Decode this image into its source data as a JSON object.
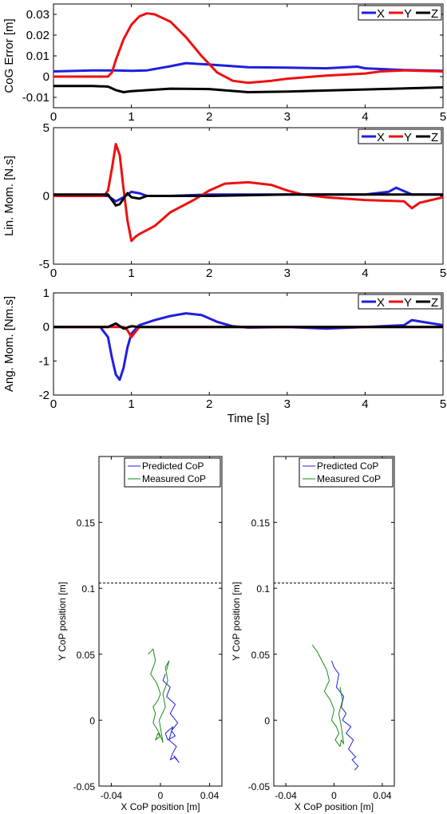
{
  "chart_data": [
    {
      "type": "line",
      "ylabel": "CoG Error [m]",
      "xlabel": "",
      "xlim": [
        0,
        5
      ],
      "ylim": [
        -0.015,
        0.035
      ],
      "xticks": [
        "0",
        "1",
        "2",
        "3",
        "4",
        "5"
      ],
      "yticks": [
        "-0.01",
        "0",
        "0.01",
        "0.02",
        "0.03"
      ],
      "ytick_values": [
        -0.01,
        0,
        0.01,
        0.02,
        0.03
      ],
      "legend": [
        "X",
        "Y",
        "Z"
      ],
      "legend_position": "top-right",
      "colors": {
        "X": "#1f1fdd",
        "Y": "#ee1111",
        "Z": "#000000"
      },
      "series": [
        {
          "name": "X",
          "x": [
            0,
            0.5,
            0.8,
            1.0,
            1.2,
            1.5,
            1.7,
            2.0,
            2.5,
            3.0,
            3.5,
            3.9,
            4.0,
            4.5,
            5.0
          ],
          "y": [
            0.0025,
            0.003,
            0.003,
            0.0028,
            0.003,
            0.005,
            0.0065,
            0.0058,
            0.0045,
            0.0043,
            0.004,
            0.0048,
            0.004,
            0.0032,
            0.0028
          ]
        },
        {
          "name": "Y",
          "x": [
            0,
            0.5,
            0.7,
            0.75,
            0.8,
            0.9,
            1.0,
            1.1,
            1.2,
            1.3,
            1.5,
            1.7,
            1.9,
            2.1,
            2.3,
            2.5,
            2.8,
            3.0,
            3.5,
            4.0,
            4.2,
            4.5,
            5.0
          ],
          "y": [
            0.0,
            0.0,
            0.0,
            0.002,
            0.008,
            0.018,
            0.025,
            0.029,
            0.0305,
            0.03,
            0.0265,
            0.019,
            0.01,
            0.002,
            -0.002,
            -0.003,
            -0.002,
            -0.001,
            0.0005,
            0.0015,
            0.0025,
            0.003,
            0.0025
          ]
        },
        {
          "name": "Z",
          "x": [
            0,
            0.5,
            0.7,
            0.8,
            0.9,
            1.0,
            1.5,
            2.0,
            2.5,
            3.0,
            4.0,
            5.0
          ],
          "y": [
            -0.0045,
            -0.0045,
            -0.0048,
            -0.0065,
            -0.0075,
            -0.007,
            -0.0058,
            -0.006,
            -0.0075,
            -0.0072,
            -0.0062,
            -0.0052
          ]
        }
      ]
    },
    {
      "type": "line",
      "ylabel": "Lin. Mom. [N.s]",
      "xlabel": "",
      "xlim": [
        0,
        5
      ],
      "ylim": [
        -5,
        5
      ],
      "xticks": [
        "0",
        "1",
        "2",
        "3",
        "4",
        "5"
      ],
      "yticks": [
        "-5",
        "0",
        "5"
      ],
      "ytick_values": [
        -5,
        0,
        5
      ],
      "legend": [
        "X",
        "Y",
        "Z"
      ],
      "legend_position": "top-right",
      "colors": {
        "X": "#1f1fdd",
        "Y": "#ee1111",
        "Z": "#000000"
      },
      "series": [
        {
          "name": "X",
          "x": [
            0,
            0.7,
            0.8,
            0.9,
            1.0,
            1.1,
            1.2,
            1.5,
            2.0,
            3.0,
            4.0,
            4.3,
            4.4,
            4.6,
            5.0
          ],
          "y": [
            0,
            0,
            -0.4,
            -0.1,
            0.3,
            0.2,
            0,
            0,
            0.1,
            0.1,
            0.1,
            0.3,
            0.6,
            0.1,
            0.1
          ]
        },
        {
          "name": "Y",
          "x": [
            0,
            0.65,
            0.7,
            0.75,
            0.8,
            0.85,
            0.9,
            0.95,
            1.0,
            1.05,
            1.1,
            1.3,
            1.5,
            1.8,
            2.0,
            2.2,
            2.5,
            2.8,
            3.0,
            3.2,
            3.5,
            4.0,
            4.5,
            4.6,
            4.7,
            5.0
          ],
          "y": [
            0,
            0,
            0.4,
            2.0,
            3.8,
            3.0,
            0.5,
            -1.8,
            -3.3,
            -3.0,
            -2.8,
            -2.2,
            -1.2,
            -0.3,
            0.4,
            0.9,
            1.0,
            0.8,
            0.4,
            0.1,
            -0.1,
            -0.3,
            -0.4,
            -0.9,
            -0.5,
            -0.1
          ]
        },
        {
          "name": "Z",
          "x": [
            0,
            0.7,
            0.75,
            0.8,
            0.85,
            0.9,
            0.95,
            1.0,
            1.1,
            1.2,
            1.5,
            2.0,
            3.0,
            4.0,
            5.0
          ],
          "y": [
            0.1,
            0.1,
            -0.3,
            -0.7,
            -0.6,
            -0.2,
            0.2,
            -0.1,
            -0.2,
            0,
            0,
            0,
            0.1,
            0.1,
            0.1
          ]
        }
      ]
    },
    {
      "type": "line",
      "ylabel": "Ang. Mom. [Nm.s]",
      "xlabel": "Time [s]",
      "xlim": [
        0,
        5
      ],
      "ylim": [
        -2,
        1
      ],
      "xticks": [
        "0",
        "1",
        "2",
        "3",
        "4",
        "5"
      ],
      "yticks": [
        "-2",
        "-1",
        "0",
        "1"
      ],
      "ytick_values": [
        -2,
        -1,
        0,
        1
      ],
      "legend": [
        "X",
        "Y",
        "Z"
      ],
      "legend_position": "top-right",
      "colors": {
        "X": "#1f1fdd",
        "Y": "#ee1111",
        "Z": "#000000"
      },
      "series": [
        {
          "name": "X",
          "x": [
            0,
            0.6,
            0.7,
            0.75,
            0.8,
            0.85,
            0.9,
            0.95,
            1.0,
            1.1,
            1.3,
            1.5,
            1.7,
            1.9,
            2.1,
            2.3,
            2.5,
            3.0,
            3.5,
            4.0,
            4.5,
            4.6,
            5.0
          ],
          "y": [
            0,
            0,
            -0.3,
            -0.9,
            -1.4,
            -1.55,
            -1.2,
            -0.6,
            -0.2,
            0.05,
            0.2,
            0.32,
            0.4,
            0.35,
            0.15,
            0.02,
            -0.02,
            0,
            -0.05,
            0,
            0.05,
            0.2,
            0.05
          ]
        },
        {
          "name": "Y",
          "x": [
            0,
            0.9,
            0.95,
            1.0,
            1.05,
            1.1,
            1.5,
            2.0,
            3.0,
            4.0,
            5.0
          ],
          "y": [
            0,
            0,
            -0.1,
            -0.3,
            -0.15,
            0,
            0,
            0,
            0,
            0,
            0
          ]
        },
        {
          "name": "Z",
          "x": [
            0,
            0.7,
            0.8,
            0.9,
            1.0,
            1.1,
            2.0,
            3.0,
            4.0,
            5.0
          ],
          "y": [
            0,
            0,
            0.1,
            -0.05,
            0.02,
            0,
            0,
            0,
            0,
            0
          ]
        }
      ]
    },
    {
      "type": "line",
      "xlabel": "X CoP position [m]",
      "ylabel": "Y CoP position [m]",
      "xlim": [
        -0.05,
        0.05
      ],
      "ylim": [
        -0.05,
        0.2
      ],
      "xticks": [
        "-0.04",
        "0",
        "0.04"
      ],
      "xtick_values": [
        -0.04,
        0,
        0.04
      ],
      "yticks": [
        "-0.05",
        "0",
        "0.05",
        "0.1",
        "0.15"
      ],
      "ytick_values": [
        -0.05,
        0,
        0.05,
        0.1,
        0.15
      ],
      "legend": [
        "Predicted CoP",
        "Measured CoP"
      ],
      "legend_position": "top-right",
      "colors": {
        "Predicted CoP": "#1f1fdd",
        "Measured CoP": "#1a8a1a"
      },
      "threshold": 0.104,
      "series": [
        {
          "name": "Predicted CoP",
          "x": [
            0.004,
            0.002,
            0.008,
            0.005,
            0.012,
            0.008,
            0.014,
            0.009,
            0.012,
            0.006,
            0.004,
            0.01,
            0.007,
            0.013,
            0.01,
            0.008,
            0.012,
            0.015,
            0.011,
            0.013
          ],
          "y": [
            0.035,
            0.03,
            0.025,
            0.018,
            0.012,
            0.005,
            -0.002,
            -0.008,
            -0.012,
            -0.015,
            -0.01,
            -0.005,
            -0.015,
            -0.02,
            -0.025,
            -0.03,
            -0.028,
            -0.032,
            -0.027,
            -0.03
          ]
        },
        {
          "name": "Measured CoP",
          "x": [
            -0.01,
            -0.006,
            -0.004,
            -0.008,
            -0.003,
            0.0,
            -0.002,
            -0.006,
            -0.004,
            -0.006,
            -0.002,
            0.0,
            -0.004,
            -0.002,
            0.001,
            0.002,
            -0.001,
            0.004,
            0.002,
            0.006,
            0.004,
            0.007,
            0.005
          ],
          "y": [
            0.05,
            0.054,
            0.045,
            0.035,
            0.028,
            0.02,
            0.015,
            0.01,
            0.005,
            -0.002,
            -0.008,
            -0.012,
            -0.015,
            -0.01,
            -0.014,
            -0.017,
            0.0,
            0.01,
            0.02,
            0.03,
            0.04,
            0.045,
            0.038
          ]
        }
      ]
    },
    {
      "type": "line",
      "xlabel": "X CoP position [m]",
      "ylabel": "Y CoP position [m]",
      "xlim": [
        -0.05,
        0.05
      ],
      "ylim": [
        -0.05,
        0.2
      ],
      "xticks": [
        "-0.04",
        "0",
        "0.04"
      ],
      "xtick_values": [
        -0.04,
        0,
        0.04
      ],
      "yticks": [
        "-0.05",
        "0",
        "0.05",
        "0.1",
        "0.15"
      ],
      "ytick_values": [
        -0.05,
        0,
        0.05,
        0.1,
        0.15
      ],
      "legend": [
        "Predicted CoP",
        "Measured CoP"
      ],
      "legend_position": "top-right",
      "colors": {
        "Predicted CoP": "#1f1fdd",
        "Measured CoP": "#1a8a1a"
      },
      "threshold": 0.104,
      "series": [
        {
          "name": "Predicted CoP",
          "x": [
            -0.002,
            0.0,
            0.004,
            0.002,
            0.008,
            0.006,
            0.01,
            0.007,
            0.014,
            0.01,
            0.016,
            0.012,
            0.018,
            0.015,
            0.02,
            0.017
          ],
          "y": [
            0.045,
            0.04,
            0.035,
            0.025,
            0.018,
            0.01,
            0.005,
            0.0,
            -0.005,
            -0.01,
            -0.015,
            -0.022,
            -0.028,
            -0.03,
            -0.035,
            -0.038
          ]
        },
        {
          "name": "Measured CoP",
          "x": [
            -0.018,
            -0.014,
            -0.01,
            -0.006,
            -0.004,
            -0.008,
            -0.003,
            0.0,
            -0.002,
            0.002,
            0.004,
            0.001,
            0.005,
            0.006,
            0.008,
            0.006,
            0.004,
            0.007,
            0.005
          ],
          "y": [
            0.057,
            0.052,
            0.045,
            0.038,
            0.03,
            0.022,
            0.015,
            0.008,
            0.0,
            -0.005,
            -0.01,
            -0.015,
            -0.02,
            -0.015,
            -0.018,
            -0.005,
            0.005,
            0.015,
            0.025
          ]
        }
      ]
    }
  ]
}
